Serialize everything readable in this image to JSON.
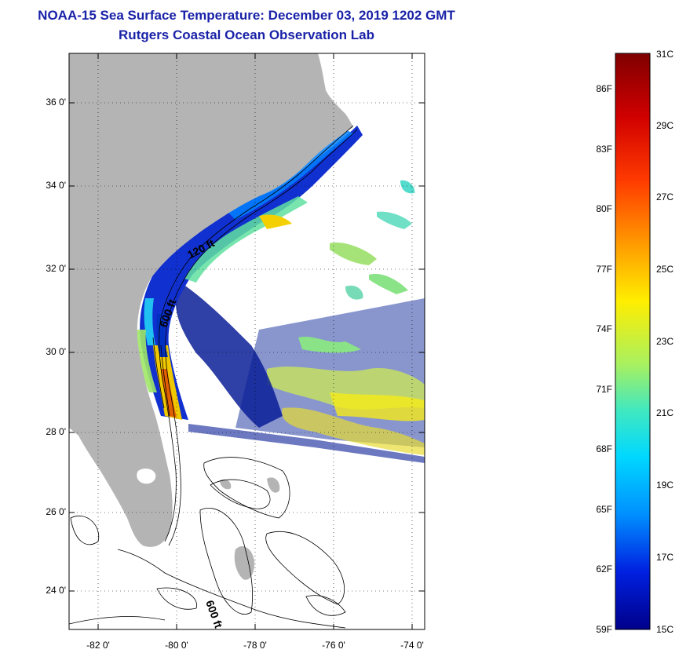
{
  "title": {
    "line1": "NOAA-15 Sea Surface Temperature:  December 03, 2019 1202 GMT",
    "line2": "Rutgers Coastal Ocean Observation Lab"
  },
  "map": {
    "latitude_labels": [
      "36 0'",
      "34 0'",
      "32 0'",
      "30 0'",
      "28 0'",
      "26 0'",
      "24 0'"
    ],
    "longitude_labels": [
      "-82 0'",
      "-80 0'",
      "-78 0'",
      "-76 0'",
      "-74 0'"
    ],
    "isobath_labels": [
      "120 ft",
      "600 ft",
      "600 ft"
    ],
    "land_color": "#b4b4b4",
    "no_data_color": "#ffffff"
  },
  "colorbar": {
    "fahrenheit_labels": [
      "86F",
      "83F",
      "80F",
      "77F",
      "74F",
      "71F",
      "68F",
      "65F",
      "62F",
      "59F"
    ],
    "celsius_labels": [
      "31C",
      "29C",
      "27C",
      "25C",
      "23C",
      "21C",
      "19C",
      "17C",
      "15C"
    ],
    "scale_min_c": 15,
    "scale_max_c": 31,
    "colors": [
      "#00007f",
      "#0000ff",
      "#007fff",
      "#00ffff",
      "#7fff7f",
      "#ffff00",
      "#ff7f00",
      "#ff0000",
      "#7f0000"
    ]
  }
}
